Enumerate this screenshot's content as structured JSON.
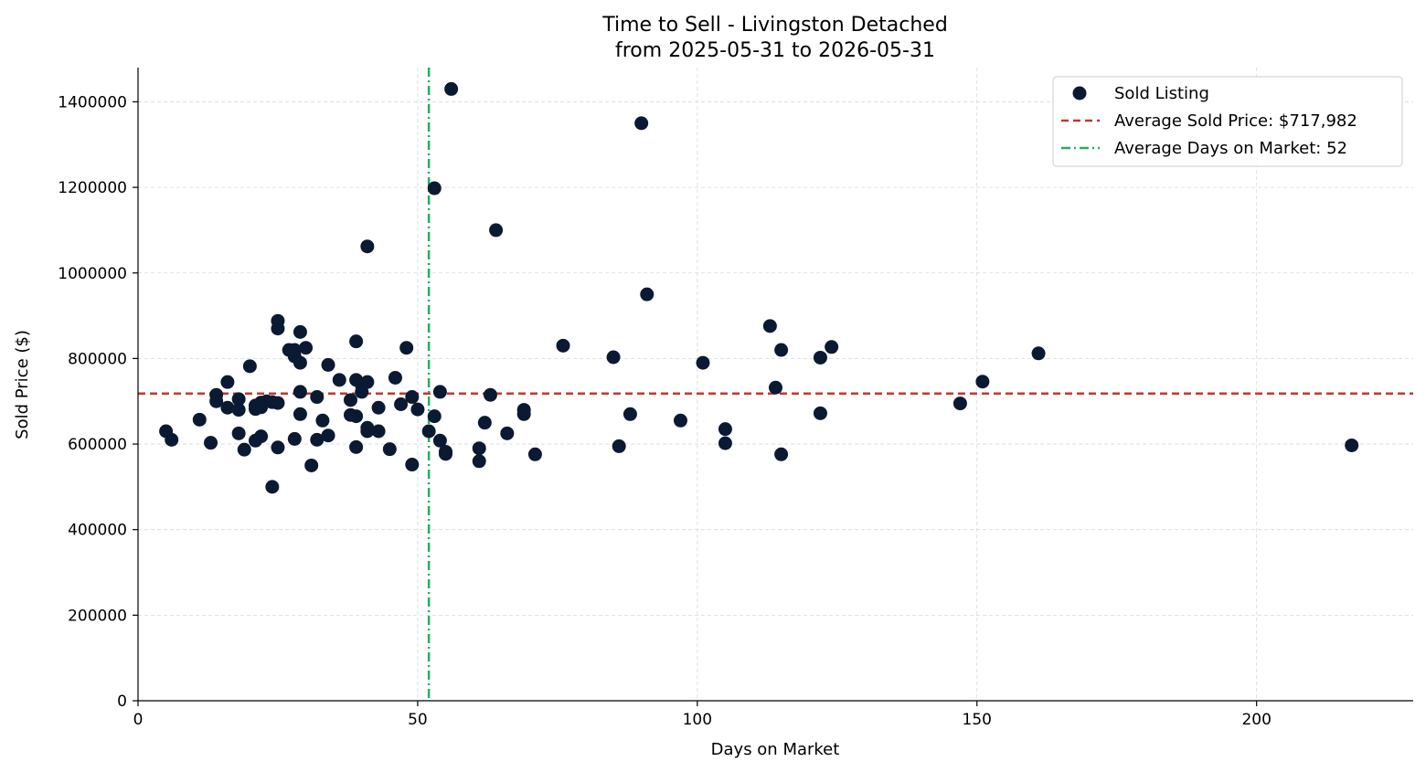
{
  "chart_data": {
    "type": "scatter",
    "title": "Time to Sell - Livingston Detached",
    "subtitle": "from 2025-05-31 to 2026-05-31",
    "xlabel": "Days on Market",
    "ylabel": "Sold Price ($)",
    "xlim": [
      0,
      228
    ],
    "ylim": [
      0,
      1480000
    ],
    "xticks": [
      0,
      50,
      100,
      150,
      200
    ],
    "yticks": [
      0,
      200000,
      400000,
      600000,
      800000,
      1000000,
      1200000,
      1400000
    ],
    "grid": true,
    "legend_position": "top-right",
    "legend": [
      {
        "label": "Sold Listing"
      },
      {
        "label": "Average Sold Price: $717,982"
      },
      {
        "label": "Average Days on Market: 52"
      }
    ],
    "average_price": 717982,
    "average_days": 52,
    "colors": {
      "points": "#0b1a33",
      "avg_price": "#c0392b",
      "avg_days": "#27ae60",
      "grid": "#d9d9d9"
    },
    "series": [
      {
        "name": "Sold Listing",
        "points": [
          [
            5,
            630000
          ],
          [
            6,
            610000
          ],
          [
            11,
            657000
          ],
          [
            13,
            603000
          ],
          [
            14,
            715000
          ],
          [
            14,
            700000
          ],
          [
            16,
            745000
          ],
          [
            16,
            685000
          ],
          [
            18,
            705000
          ],
          [
            18,
            680000
          ],
          [
            18,
            625000
          ],
          [
            19,
            587000
          ],
          [
            20,
            782000
          ],
          [
            21,
            690000
          ],
          [
            21,
            682000
          ],
          [
            21,
            608000
          ],
          [
            22,
            697000
          ],
          [
            22,
            686000
          ],
          [
            22,
            618000
          ],
          [
            23,
            700000
          ],
          [
            24,
            500000
          ],
          [
            24,
            698000
          ],
          [
            25,
            888000
          ],
          [
            25,
            870000
          ],
          [
            25,
            696000
          ],
          [
            25,
            592000
          ],
          [
            27,
            820000
          ],
          [
            28,
            820000
          ],
          [
            28,
            805000
          ],
          [
            28,
            612000
          ],
          [
            29,
            862000
          ],
          [
            29,
            790000
          ],
          [
            29,
            722000
          ],
          [
            29,
            670000
          ],
          [
            30,
            825000
          ],
          [
            31,
            550000
          ],
          [
            32,
            710000
          ],
          [
            32,
            610000
          ],
          [
            33,
            655000
          ],
          [
            34,
            785000
          ],
          [
            34,
            620000
          ],
          [
            36,
            750000
          ],
          [
            38,
            703000
          ],
          [
            38,
            668000
          ],
          [
            39,
            840000
          ],
          [
            39,
            750000
          ],
          [
            39,
            665000
          ],
          [
            39,
            593000
          ],
          [
            40,
            738000
          ],
          [
            40,
            722000
          ],
          [
            41,
            1062000
          ],
          [
            41,
            745000
          ],
          [
            41,
            638000
          ],
          [
            41,
            630000
          ],
          [
            43,
            685000
          ],
          [
            43,
            630000
          ],
          [
            45,
            588000
          ],
          [
            46,
            755000
          ],
          [
            47,
            693000
          ],
          [
            48,
            825000
          ],
          [
            49,
            710000
          ],
          [
            49,
            552000
          ],
          [
            50,
            681000
          ],
          [
            52,
            630000
          ],
          [
            53,
            1198000
          ],
          [
            53,
            665000
          ],
          [
            54,
            722000
          ],
          [
            54,
            608000
          ],
          [
            55,
            582000
          ],
          [
            55,
            577000
          ],
          [
            56,
            1430000
          ],
          [
            61,
            590000
          ],
          [
            61,
            560000
          ],
          [
            62,
            650000
          ],
          [
            63,
            715000
          ],
          [
            64,
            1100000
          ],
          [
            66,
            625000
          ],
          [
            69,
            680000
          ],
          [
            69,
            670000
          ],
          [
            71,
            576000
          ],
          [
            76,
            830000
          ],
          [
            85,
            803000
          ],
          [
            86,
            595000
          ],
          [
            88,
            670000
          ],
          [
            90,
            1350000
          ],
          [
            91,
            950000
          ],
          [
            97,
            655000
          ],
          [
            101,
            790000
          ],
          [
            105,
            635000
          ],
          [
            105,
            602000
          ],
          [
            113,
            876000
          ],
          [
            114,
            732000
          ],
          [
            115,
            820000
          ],
          [
            115,
            576000
          ],
          [
            122,
            802000
          ],
          [
            122,
            672000
          ],
          [
            124,
            827000
          ],
          [
            147,
            695000
          ],
          [
            151,
            746000
          ],
          [
            161,
            812000
          ],
          [
            217,
            597000
          ]
        ]
      }
    ]
  }
}
